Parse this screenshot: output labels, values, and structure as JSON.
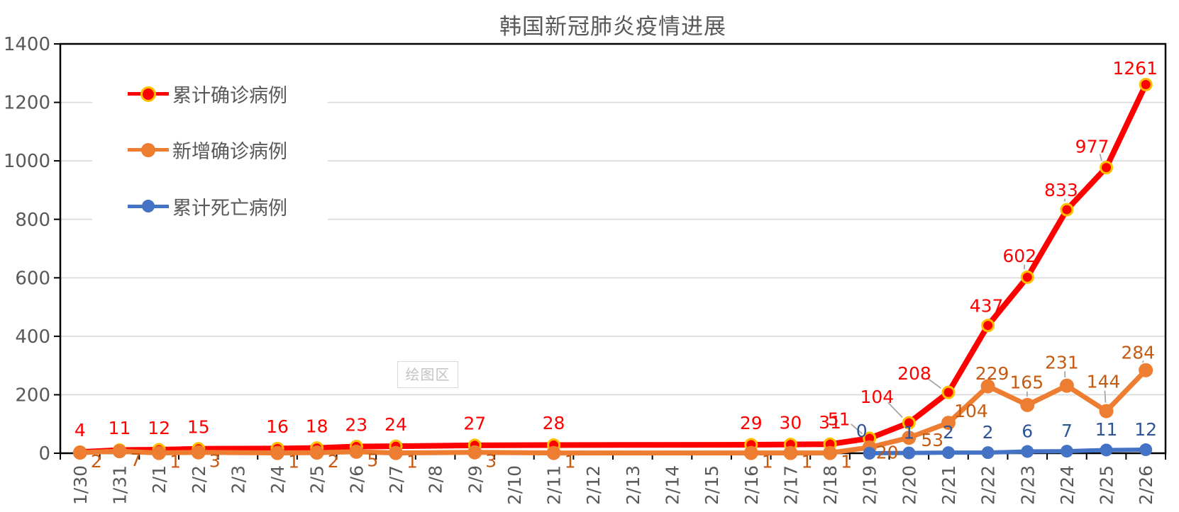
{
  "chart_data": {
    "type": "line",
    "title": "韩国新冠肺炎疫情进展",
    "watermark": "绘图区",
    "grid": true,
    "legend_position": "top-left-inside",
    "categories": [
      "1/30",
      "1/31",
      "2/1",
      "2/2",
      "2/3",
      "2/4",
      "2/5",
      "2/6",
      "2/7",
      "2/8",
      "2/9",
      "2/10",
      "2/11",
      "2/12",
      "2/13",
      "2/14",
      "2/15",
      "2/16",
      "2/17",
      "2/18",
      "2/19",
      "2/20",
      "2/21",
      "2/22",
      "2/23",
      "2/24",
      "2/25",
      "2/26"
    ],
    "y_axis": {
      "min": 0,
      "max": 1400,
      "step": 200,
      "tick_labels": [
        "0",
        "200",
        "400",
        "600",
        "800",
        "1000",
        "1200",
        "1400"
      ]
    },
    "series": [
      {
        "key": "cumulative-confirmed",
        "name": "累计确诊病例",
        "color": "#FF0000",
        "label_color": "#FF0000",
        "marker": "ring",
        "marker_ring_color": "#FFC000",
        "values": [
          4,
          11,
          12,
          15,
          null,
          16,
          18,
          23,
          24,
          null,
          27,
          null,
          28,
          null,
          null,
          null,
          null,
          29,
          30,
          31,
          51,
          104,
          208,
          437,
          602,
          833,
          977,
          1261
        ]
      },
      {
        "key": "new-confirmed",
        "name": "新增确诊病例",
        "color": "#ED7D31",
        "label_color": "#C55A11",
        "marker": "solid",
        "values": [
          2,
          7,
          1,
          3,
          null,
          1,
          2,
          5,
          1,
          null,
          3,
          null,
          1,
          null,
          null,
          null,
          null,
          1,
          1,
          1,
          20,
          53,
          104,
          229,
          165,
          231,
          144,
          284
        ]
      },
      {
        "key": "cumulative-deaths",
        "name": "累计死亡病例",
        "color": "#4472C4",
        "label_color": "#2F5597",
        "marker": "solid",
        "values": [
          null,
          null,
          null,
          null,
          null,
          null,
          null,
          null,
          null,
          null,
          null,
          null,
          null,
          null,
          null,
          null,
          null,
          null,
          null,
          null,
          0,
          1,
          2,
          2,
          6,
          7,
          11,
          12
        ]
      }
    ],
    "colors": {
      "grid": "#D9D9D9",
      "axis_text": "#595959",
      "border": "#000000",
      "leader": "#A6A6A6",
      "background": "#FFFFFF"
    }
  }
}
